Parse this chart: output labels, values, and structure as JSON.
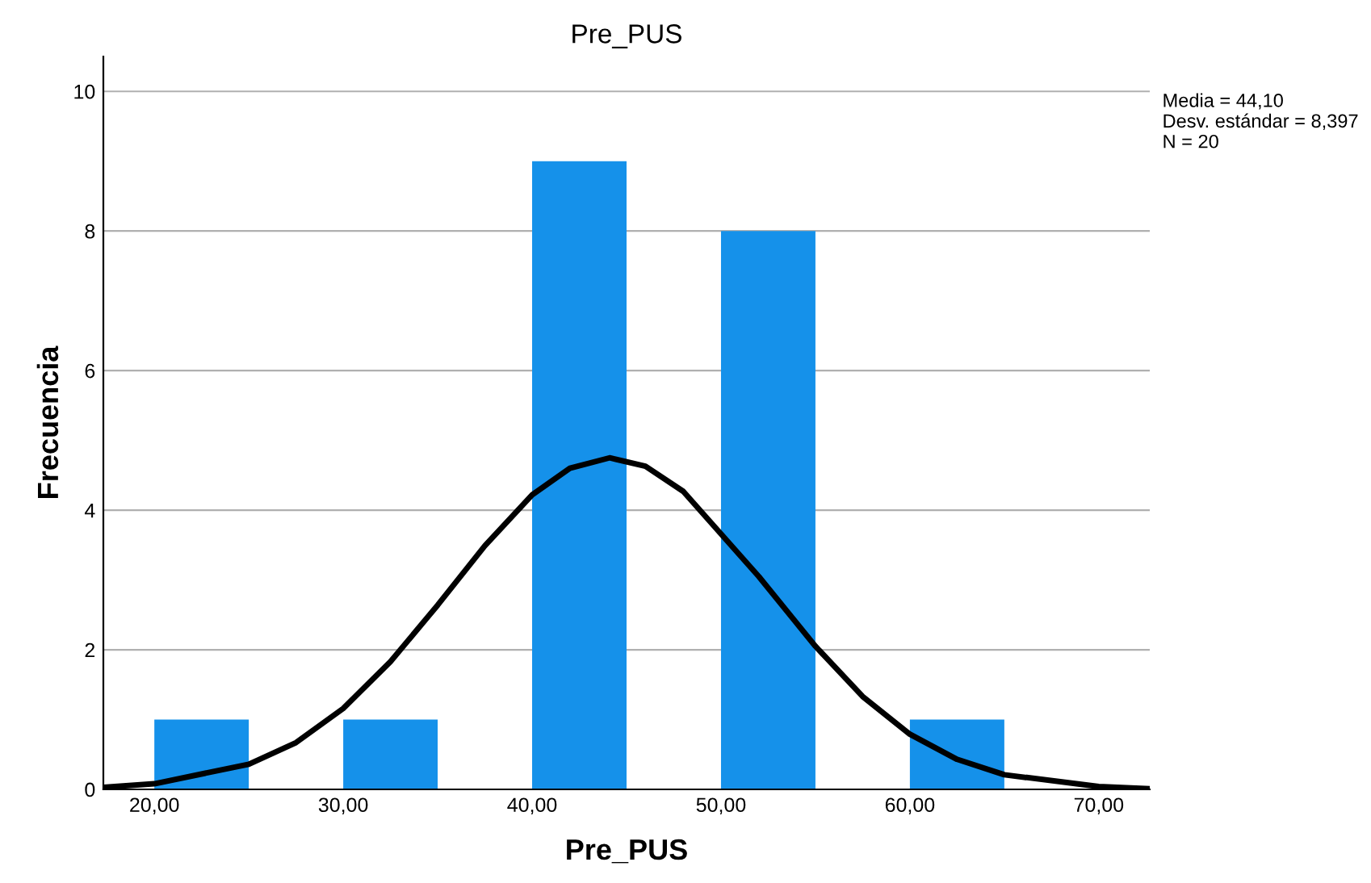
{
  "chart_data": {
    "type": "histogram",
    "title": "Pre_PUS",
    "xlabel": "Pre_PUS",
    "ylabel": "Frecuencia",
    "series": [
      {
        "bins": [
          20,
          25,
          30,
          35,
          40,
          45,
          50,
          55,
          60,
          65
        ],
        "values": [
          1,
          0,
          1,
          0,
          9,
          0,
          8,
          0,
          1
        ],
        "color": "#1591ea"
      },
      {
        "type": "line",
        "x": [
          17.3,
          20,
          25,
          27.5,
          30,
          32.5,
          35,
          37.5,
          40,
          42,
          44.1,
          46,
          48,
          52,
          55,
          57.5,
          60,
          62.5,
          65,
          70,
          72.7
        ],
        "values": [
          0.03,
          0.08,
          0.36,
          0.67,
          1.16,
          1.83,
          2.64,
          3.49,
          4.22,
          4.6,
          4.75,
          4.63,
          4.27,
          3.05,
          2.05,
          1.33,
          0.79,
          0.43,
          0.21,
          0.04,
          0.01
        ],
        "color": "#000000"
      }
    ],
    "xlim": [
      17.3,
      72.7
    ],
    "ylim": [
      0,
      10.5
    ],
    "xticks": [
      {
        "value": 20,
        "label": "20,00"
      },
      {
        "value": 30,
        "label": "30,00"
      },
      {
        "value": 40,
        "label": "40,00"
      },
      {
        "value": 50,
        "label": "50,00"
      },
      {
        "value": 60,
        "label": "60,00"
      },
      {
        "value": 70,
        "label": "70,00"
      }
    ],
    "yticks": [
      0,
      2,
      4,
      6,
      8,
      10
    ],
    "grid": "y",
    "annotations": [
      "Media = 44,10",
      "Desv. estándar = 8,397",
      "N = 20"
    ]
  }
}
